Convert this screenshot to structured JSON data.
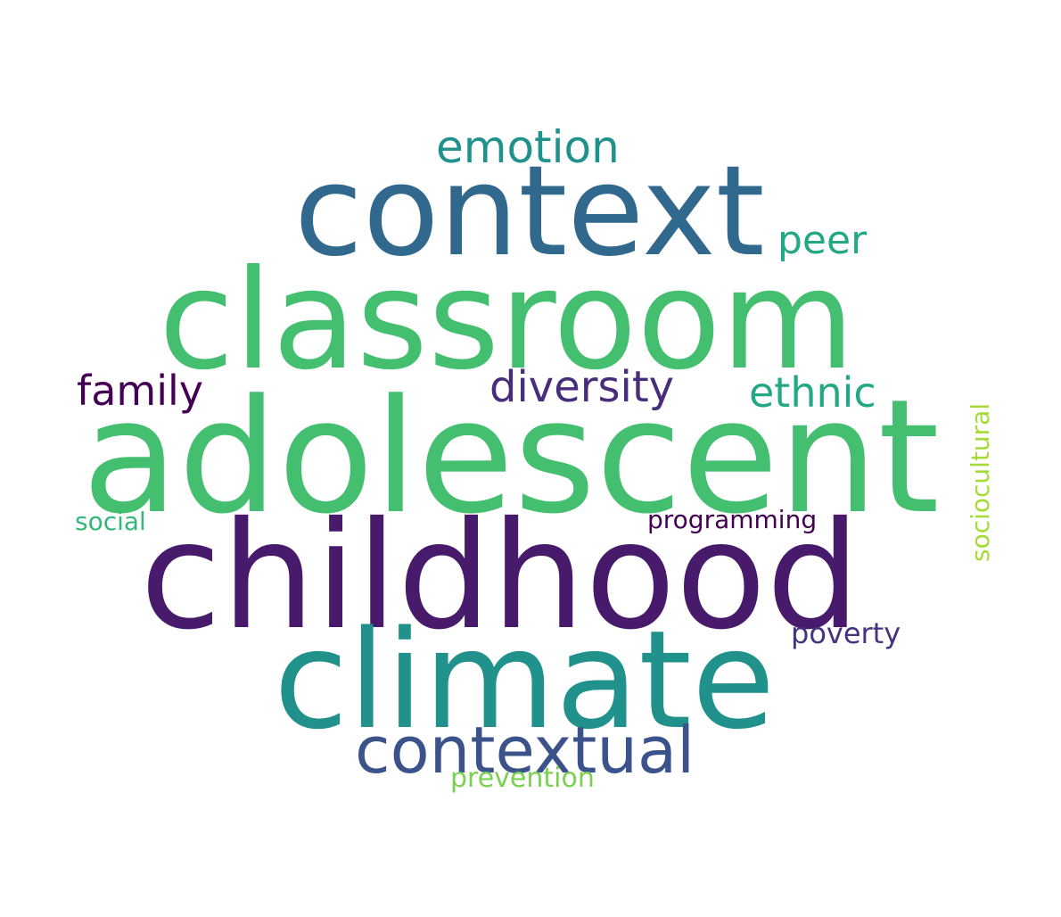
{
  "words": [
    {
      "id": "childhood",
      "text": "childhood",
      "color": "#481a6c"
    },
    {
      "id": "adolescent",
      "text": "adolescent",
      "color": "#44bf70"
    },
    {
      "id": "classroom",
      "text": "classroom",
      "color": "#44bf70"
    },
    {
      "id": "context",
      "text": "context",
      "color": "#31688e"
    },
    {
      "id": "climate",
      "text": "climate",
      "color": "#21918c"
    },
    {
      "id": "contextual",
      "text": "contextual",
      "color": "#3b528b"
    },
    {
      "id": "emotion",
      "text": "emotion",
      "color": "#21918c"
    },
    {
      "id": "peer",
      "text": "peer",
      "color": "#22a884"
    },
    {
      "id": "family",
      "text": "family",
      "color": "#440154"
    },
    {
      "id": "diversity",
      "text": "diversity",
      "color": "#472d7b"
    },
    {
      "id": "ethnic",
      "text": "ethnic",
      "color": "#22a884"
    },
    {
      "id": "sociocultural",
      "text": "sociocultural",
      "color": "#a5db36"
    },
    {
      "id": "social",
      "text": "social",
      "color": "#35b779"
    },
    {
      "id": "programming",
      "text": "programming",
      "color": "#440154"
    },
    {
      "id": "poverty",
      "text": "poverty",
      "color": "#46337e"
    },
    {
      "id": "prevention",
      "text": "prevention",
      "color": "#7ad151"
    }
  ]
}
